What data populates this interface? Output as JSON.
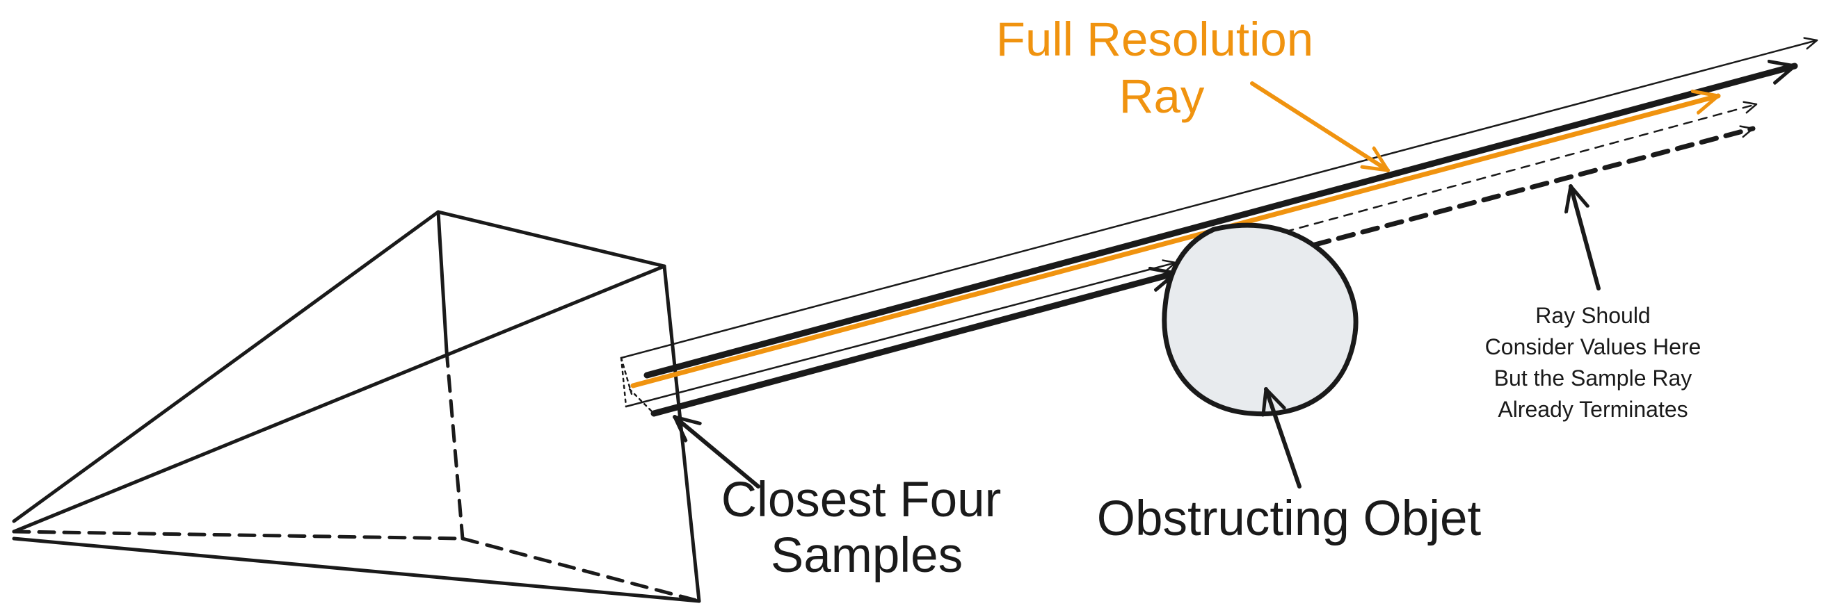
{
  "colors": {
    "ink": "#1a1a1a",
    "accent": "#f0930f",
    "object_fill": "#e8ebee"
  },
  "labels": {
    "full_resolution_ray": {
      "line1": "Full Resolution",
      "line2": "Ray"
    },
    "closest_four_samples": {
      "line1": "Closest Four",
      "line2": "Samples"
    },
    "obstructing_object": "Obstructing Objet",
    "ray_should_consider": {
      "line1": "Ray Should",
      "line2": "Consider Values Here",
      "line3": "But the Sample Ray",
      "line4": "Already Terminates"
    }
  }
}
